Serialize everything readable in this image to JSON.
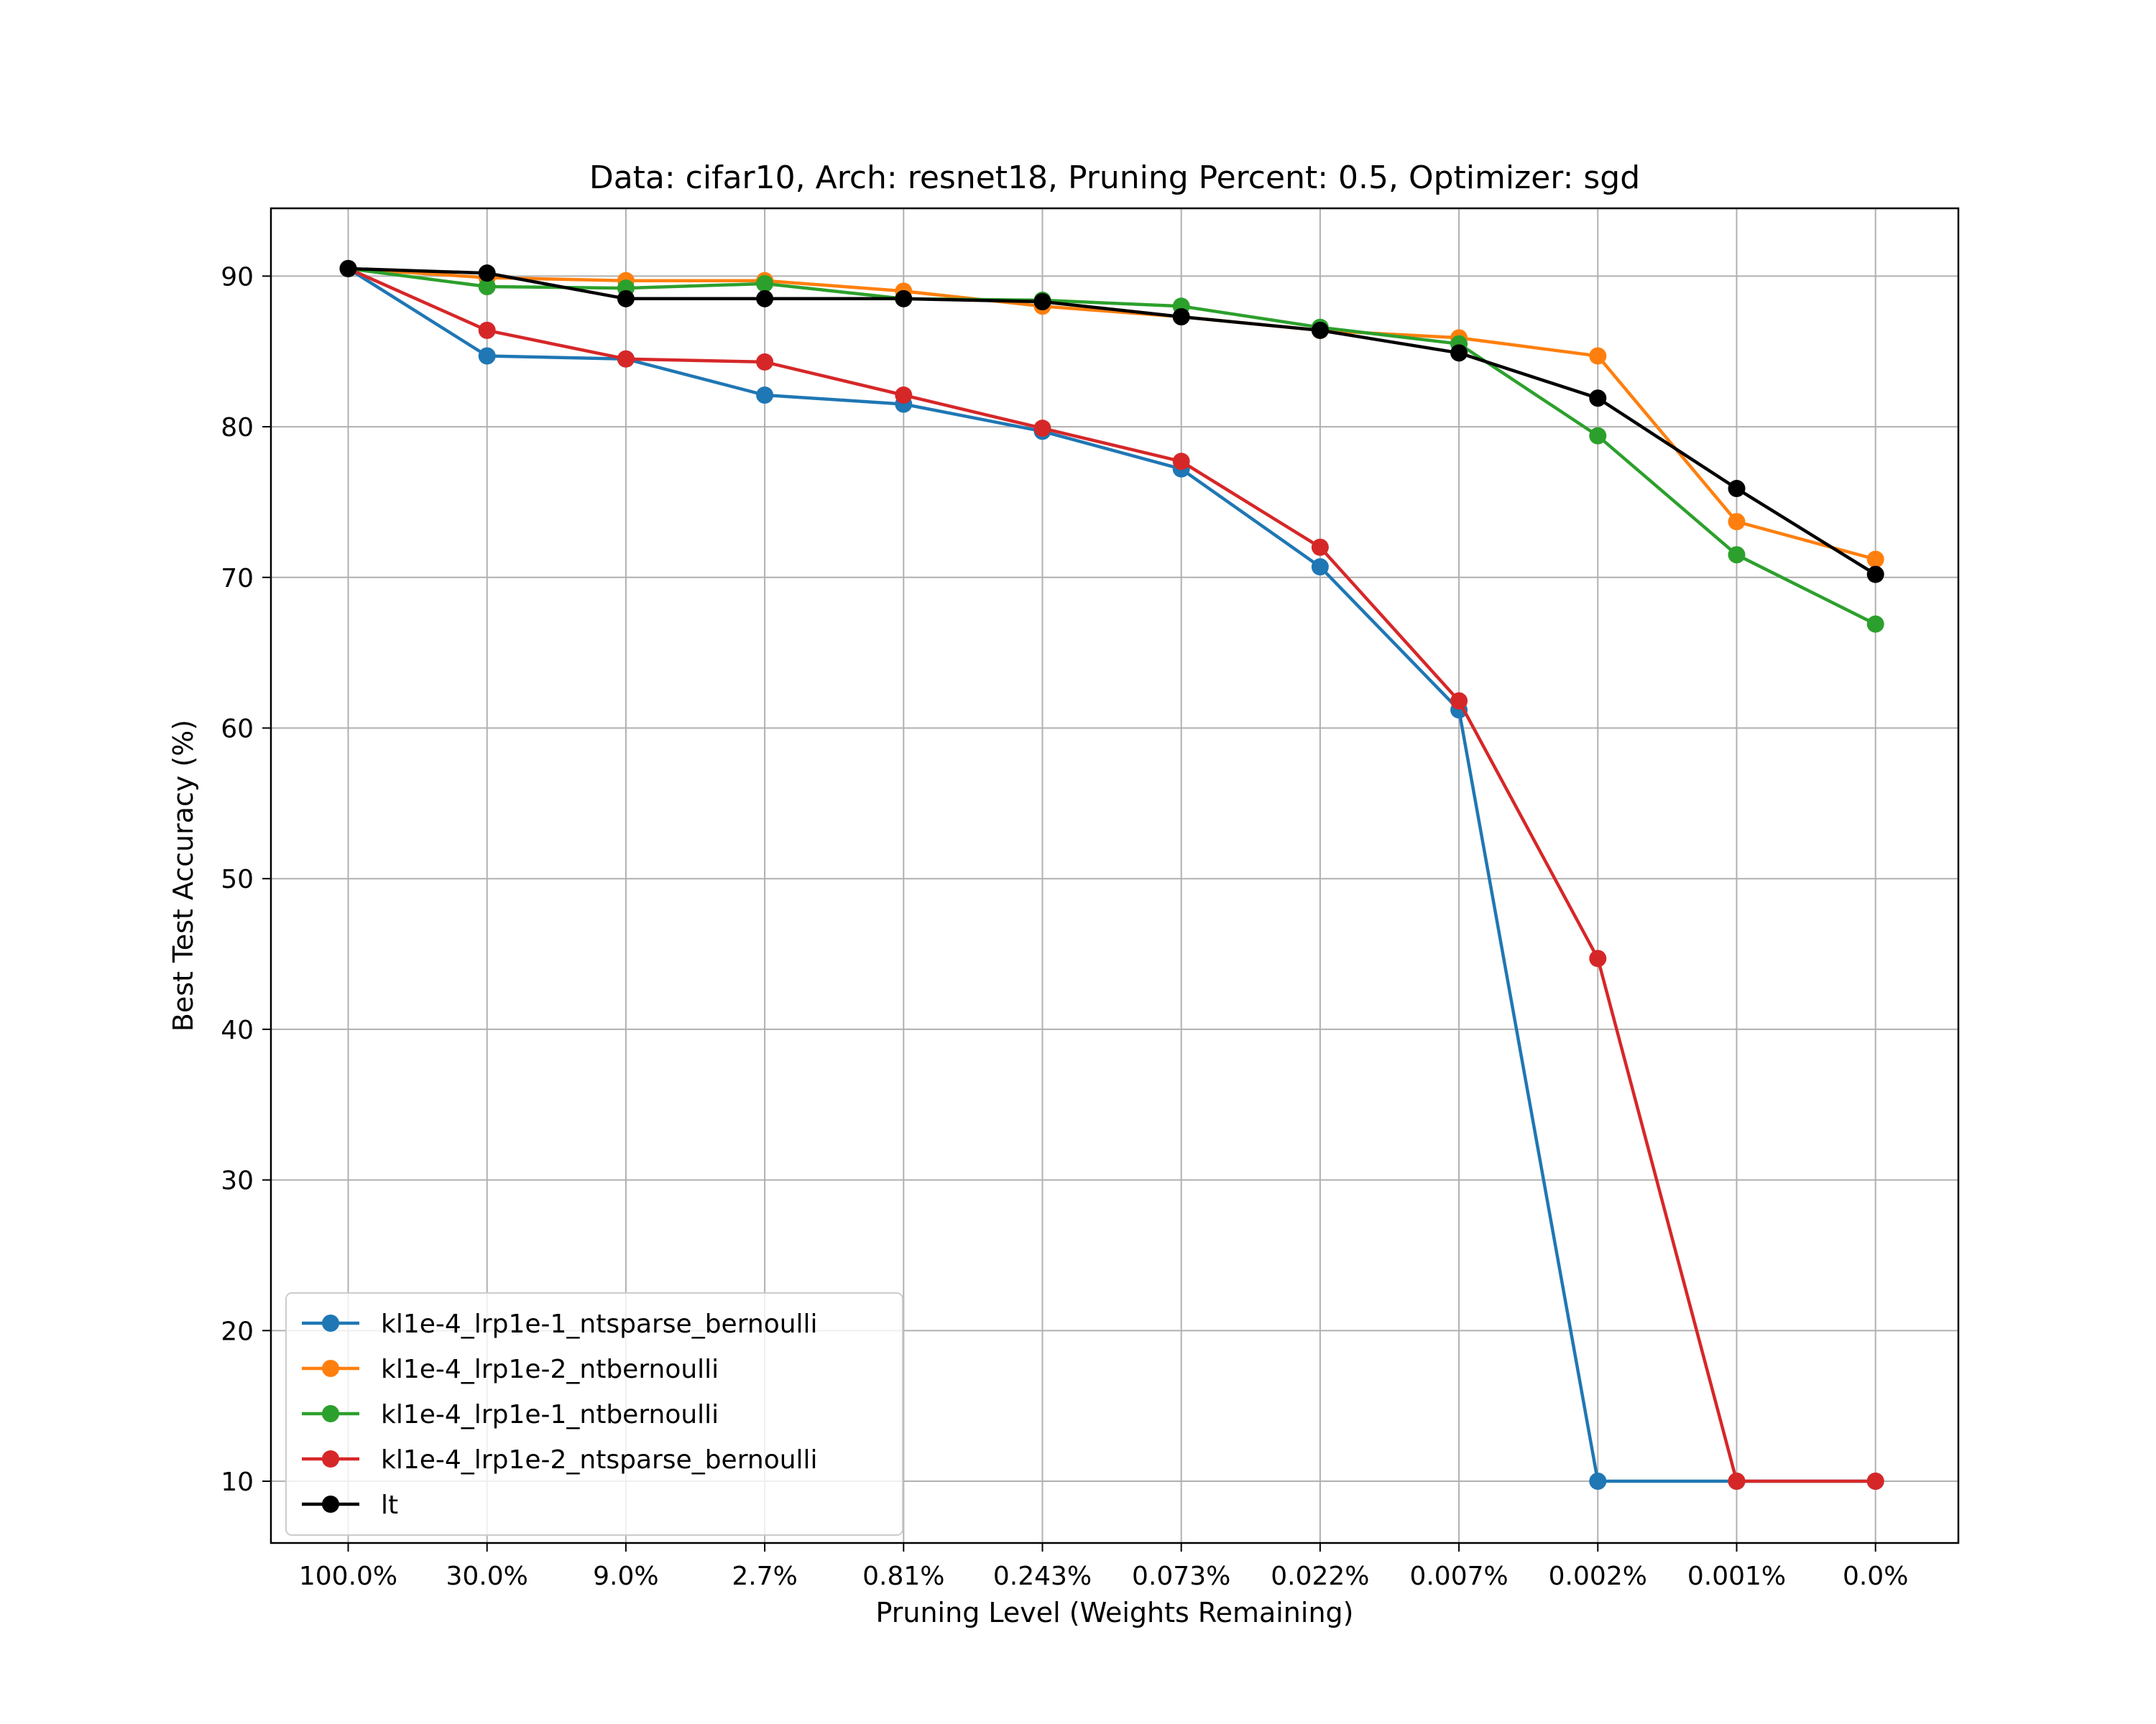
{
  "chart_data": {
    "type": "line",
    "title": "Data: cifar10, Arch: resnet18, Pruning Percent: 0.5, Optimizer: sgd",
    "xlabel": "Pruning Level (Weights Remaining)",
    "ylabel": "Best Test Accuracy (%)",
    "categories": [
      "100.0%",
      "30.0%",
      "9.0%",
      "2.7%",
      "0.81%",
      "0.243%",
      "0.073%",
      "0.022%",
      "0.007%",
      "0.002%",
      "0.001%",
      "0.0%"
    ],
    "yticks": [
      10,
      20,
      30,
      40,
      50,
      60,
      70,
      80,
      90
    ],
    "ylim": [
      5.9,
      94.5
    ],
    "grid": true,
    "legend_position": "lower-left",
    "series": [
      {
        "name": "kl1e-4_lrp1e-1_ntsparse_bernoulli",
        "color": "#1f77b4",
        "values": [
          90.5,
          84.7,
          84.5,
          82.1,
          81.5,
          79.7,
          77.2,
          70.7,
          61.2,
          10.0,
          10.0,
          10.0
        ]
      },
      {
        "name": "kl1e-4_lrp1e-2_ntbernoulli",
        "color": "#ff7f0e",
        "values": [
          90.5,
          89.9,
          89.7,
          89.7,
          89.0,
          88.0,
          87.3,
          86.4,
          85.9,
          84.7,
          73.7,
          71.2
        ]
      },
      {
        "name": "kl1e-4_lrp1e-1_ntbernoulli",
        "color": "#2ca02c",
        "values": [
          90.5,
          89.3,
          89.2,
          89.5,
          88.5,
          88.4,
          88.0,
          86.6,
          85.5,
          79.4,
          71.5,
          66.9
        ]
      },
      {
        "name": "kl1e-4_lrp1e-2_ntsparse_bernoulli",
        "color": "#d62728",
        "values": [
          90.5,
          86.4,
          84.5,
          84.3,
          82.1,
          79.9,
          77.7,
          72.0,
          61.8,
          44.7,
          10.0,
          10.0
        ]
      },
      {
        "name": "lt",
        "color": "#000000",
        "values": [
          90.5,
          90.2,
          88.5,
          88.5,
          88.5,
          88.3,
          87.3,
          86.4,
          84.9,
          81.9,
          75.9,
          70.2
        ]
      }
    ]
  }
}
